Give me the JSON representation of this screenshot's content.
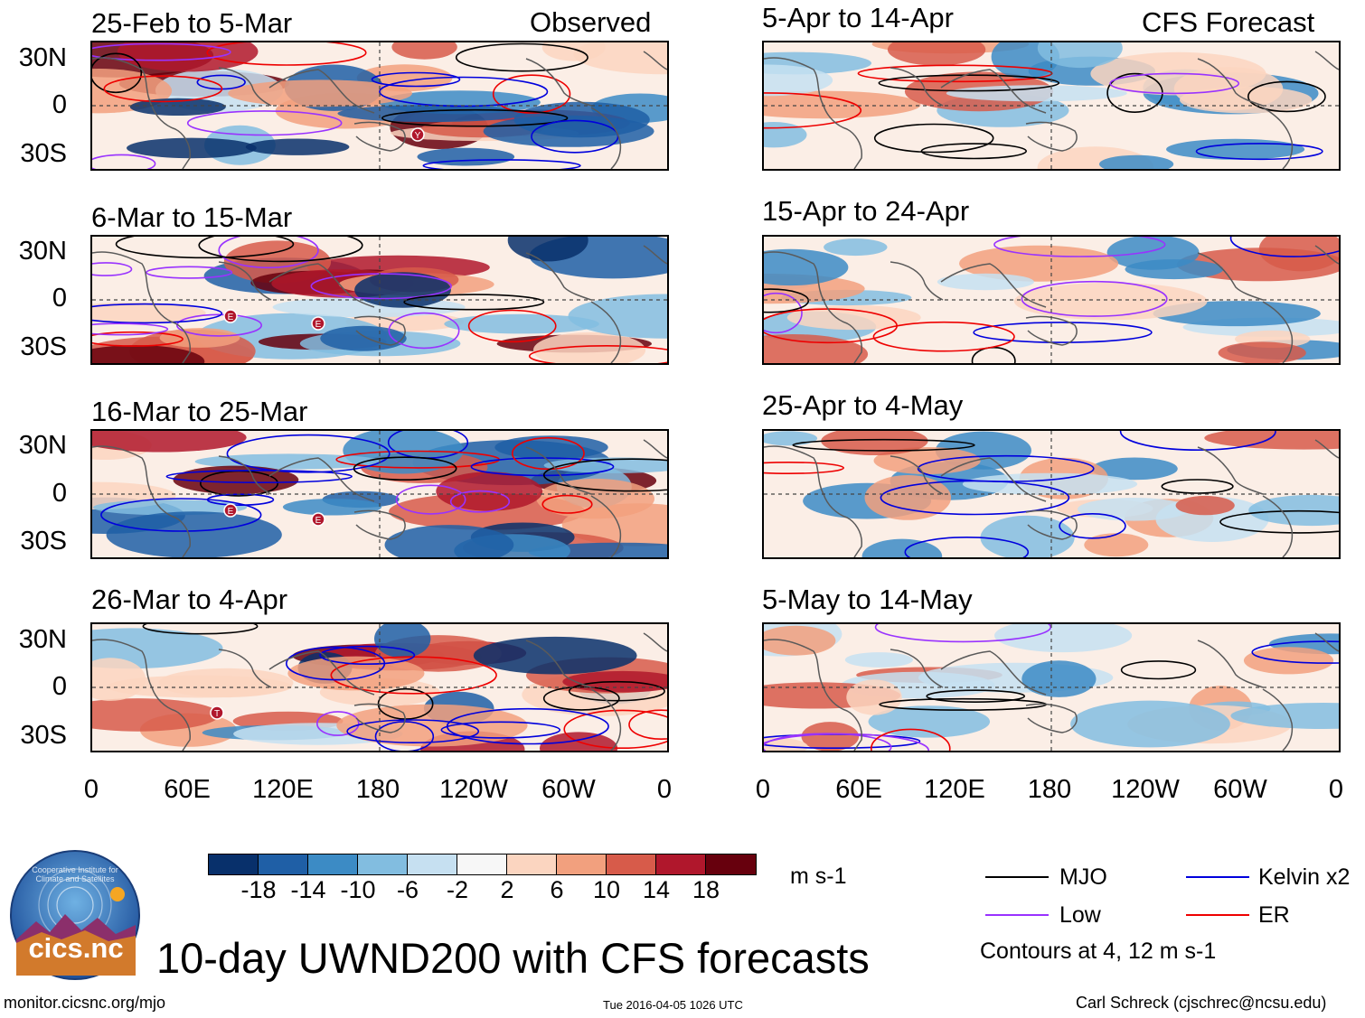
{
  "header": {
    "left_label": "Observed",
    "right_label": "CFS Forecast"
  },
  "panels_left": [
    {
      "title": "25-Feb to 5-Mar"
    },
    {
      "title": "6-Mar to 15-Mar"
    },
    {
      "title": "16-Mar to 25-Mar"
    },
    {
      "title": "26-Mar to 4-Apr"
    }
  ],
  "panels_right": [
    {
      "title": "5-Apr to 14-Apr"
    },
    {
      "title": "15-Apr to 24-Apr"
    },
    {
      "title": "25-Apr to 4-May"
    },
    {
      "title": "5-May to 14-May"
    }
  ],
  "axes": {
    "y_labels": [
      "30N",
      "0",
      "30S"
    ],
    "x_labels": [
      "0",
      "60E",
      "120E",
      "180",
      "120W",
      "60W",
      "0"
    ]
  },
  "colorbar": {
    "colors": [
      "#08306b",
      "#1f5fa6",
      "#3c8bc5",
      "#82bde0",
      "#c6e0f1",
      "#f7f7f7",
      "#fbd5c0",
      "#f2a07e",
      "#d75b4a",
      "#b0172c",
      "#67000d"
    ],
    "ticks": [
      "-18",
      "-14",
      "-10",
      "-6",
      "-2",
      "2",
      "6",
      "10",
      "14",
      "18"
    ],
    "units": "m s-1"
  },
  "legend": {
    "items": [
      {
        "label": "MJO",
        "color": "#000000"
      },
      {
        "label": "Kelvin x2",
        "color": "#0000dd"
      },
      {
        "label": "Low",
        "color": "#9932ff"
      },
      {
        "label": "ER",
        "color": "#ee0000"
      }
    ],
    "note": "Contours at 4, 12 m s-1"
  },
  "main_title": "10-day UWND200 with CFS forecasts",
  "logo": {
    "text": "cics.nc",
    "ring_text": "Cooperative Institute for Climate and Satellites"
  },
  "footer": {
    "url": "monitor.cicsnc.org/mjo",
    "timestamp": "Tue 2016-04-05 1026 UTC",
    "credit": "Carl Schreck (cjschrec@ncsu.edu)"
  },
  "marker_symbols": [
    "Y",
    "E",
    "E",
    "E",
    "E",
    "T"
  ]
}
